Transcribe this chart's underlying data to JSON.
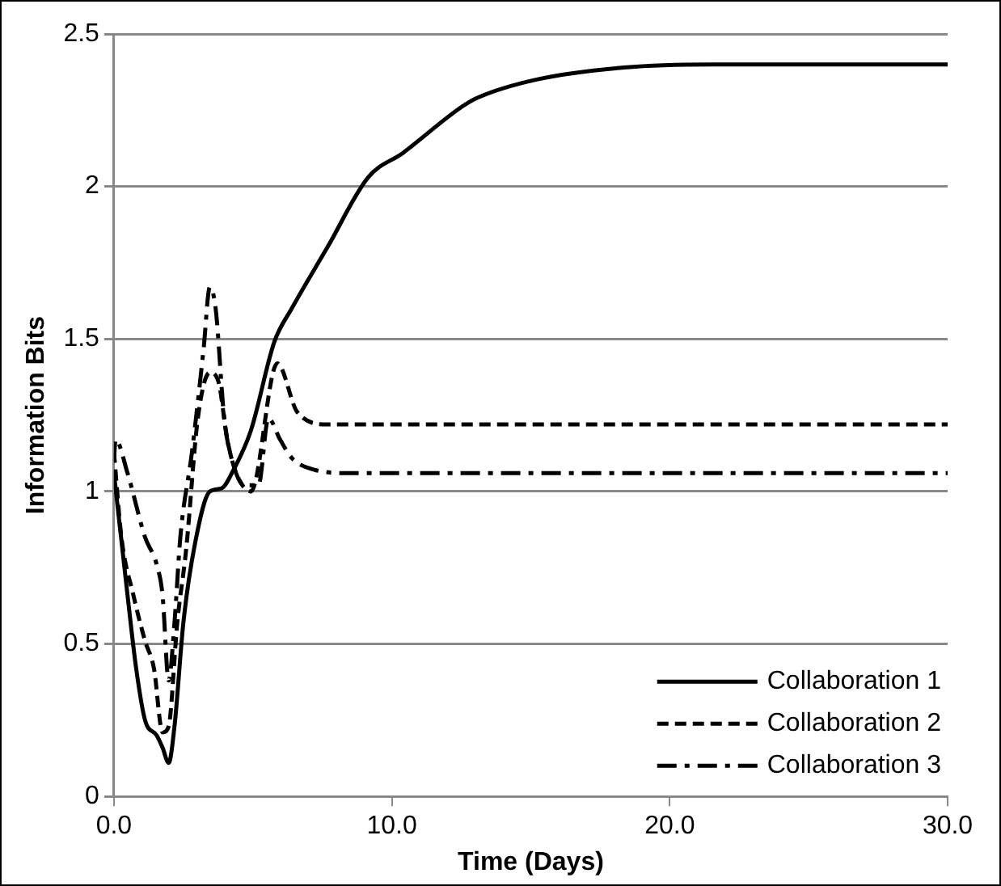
{
  "chart_data": {
    "type": "line",
    "xlabel": "Time (Days)",
    "ylabel": "Information Bits",
    "xlim": [
      0,
      30
    ],
    "xticks": [
      {
        "value": 0,
        "label": "0.0"
      },
      {
        "value": 10,
        "label": "10.0"
      },
      {
        "value": 20,
        "label": "20.0"
      },
      {
        "value": 30,
        "label": "30.0"
      }
    ],
    "ylim": [
      0,
      2.5
    ],
    "yticks": [
      0,
      0.5,
      1,
      1.5,
      2,
      2.5
    ],
    "grid": "y",
    "legend": "bottom right",
    "marker": "none",
    "series": [
      {
        "name": "Collaboration 1",
        "color": "#000000",
        "line_style": "solid",
        "x": [
          0,
          0.49,
          0.8,
          1.12,
          1.54,
          1.75,
          1.97,
          2.18,
          2.5,
          2.92,
          3.45,
          3.87,
          4.3,
          4.93,
          5.77,
          6.4,
          7.68,
          9.15,
          10.4,
          12.5,
          13.06,
          15.18,
          18.35,
          21.5,
          30
        ],
        "values": [
          1.06,
          0.66,
          0.42,
          0.25,
          0.2,
          0.16,
          0.11,
          0.23,
          0.57,
          0.83,
          1.0,
          1.01,
          1.07,
          1.2,
          1.49,
          1.6,
          1.8,
          2.03,
          2.11,
          2.26,
          2.29,
          2.35,
          2.39,
          2.4,
          2.4
        ]
      },
      {
        "name": "Collaboration 2",
        "color": "#000000",
        "line_style": "dashed",
        "x": [
          0,
          0.27,
          0.7,
          1.12,
          1.44,
          1.75,
          1.97,
          2.28,
          2.6,
          3.02,
          3.45,
          3.76,
          4.08,
          4.4,
          4.93,
          5.88,
          6.6,
          7.67,
          30
        ],
        "values": [
          1.13,
          0.85,
          0.66,
          0.51,
          0.42,
          0.21,
          0.23,
          0.57,
          0.81,
          1.24,
          1.39,
          1.36,
          1.17,
          1.06,
          1.0,
          1.42,
          1.26,
          1.22,
          1.22
        ]
      },
      {
        "name": "Collaboration 3",
        "color": "#000000",
        "line_style": "dashdot",
        "x": [
          0,
          0.06,
          0.49,
          1.12,
          1.54,
          1.75,
          1.97,
          2.18,
          2.39,
          2.81,
          3.23,
          3.45,
          3.66,
          3.97,
          4.29,
          4.7,
          5.2,
          5.56,
          5.98,
          6.4,
          7.25,
          8.5,
          30
        ],
        "values": [
          1.1,
          1.17,
          1.06,
          0.85,
          0.76,
          0.66,
          0.38,
          0.57,
          0.85,
          1.13,
          1.47,
          1.67,
          1.6,
          1.24,
          1.09,
          1.02,
          1.02,
          1.24,
          1.17,
          1.11,
          1.07,
          1.06,
          1.06
        ]
      }
    ]
  }
}
